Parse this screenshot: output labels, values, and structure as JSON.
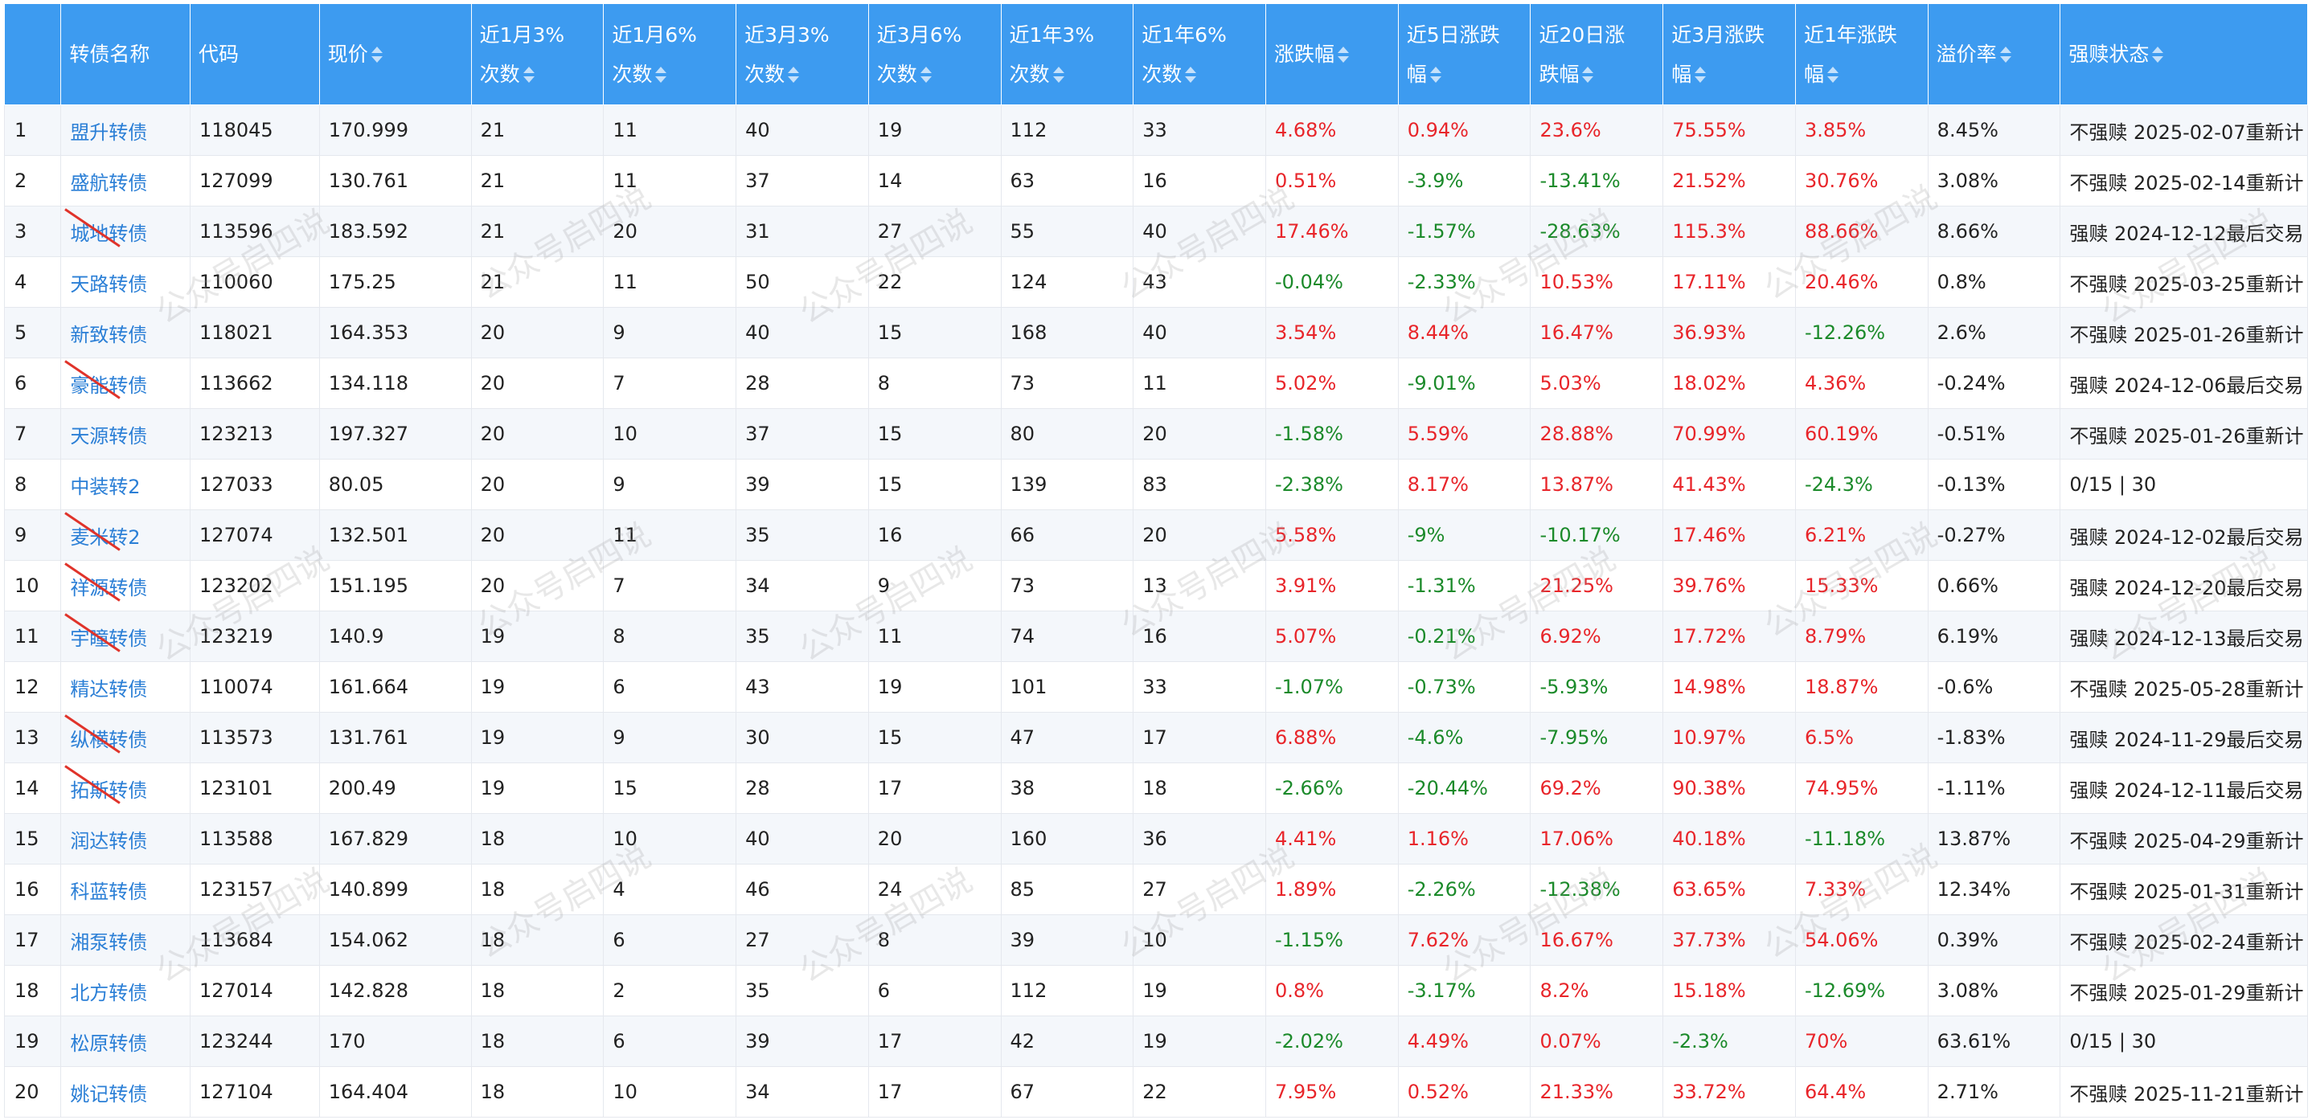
{
  "headers": [
    {
      "key": "idx",
      "lines": [
        ""
      ],
      "sortable": false
    },
    {
      "key": "name",
      "lines": [
        "转债名称"
      ],
      "sortable": false
    },
    {
      "key": "code",
      "lines": [
        "代码"
      ],
      "sortable": false
    },
    {
      "key": "price",
      "lines": [
        "现价"
      ],
      "sortable": true
    },
    {
      "key": "m1_3",
      "lines": [
        "近1月3%",
        "次数"
      ],
      "sortable": true
    },
    {
      "key": "m1_6",
      "lines": [
        "近1月6%",
        "次数"
      ],
      "sortable": true
    },
    {
      "key": "m3_3",
      "lines": [
        "近3月3%",
        "次数"
      ],
      "sortable": true
    },
    {
      "key": "m3_6",
      "lines": [
        "近3月6%",
        "次数"
      ],
      "sortable": true
    },
    {
      "key": "y1_3",
      "lines": [
        "近1年3%",
        "次数"
      ],
      "sortable": true
    },
    {
      "key": "y1_6",
      "lines": [
        "近1年6%",
        "次数"
      ],
      "sortable": true
    },
    {
      "key": "chg",
      "lines": [
        "涨跌幅"
      ],
      "sortable": true
    },
    {
      "key": "chg5",
      "lines": [
        "近5日涨跌",
        "幅"
      ],
      "sortable": true
    },
    {
      "key": "chg20",
      "lines": [
        "近20日涨",
        "跌幅"
      ],
      "sortable": true
    },
    {
      "key": "chg3m",
      "lines": [
        "近3月涨跌",
        "幅"
      ],
      "sortable": true
    },
    {
      "key": "chg1y",
      "lines": [
        "近1年涨跌",
        "幅"
      ],
      "sortable": true
    },
    {
      "key": "premium",
      "lines": [
        "溢价率"
      ],
      "sortable": true
    },
    {
      "key": "redeem",
      "lines": [
        "强赎状态"
      ],
      "sortable": true
    }
  ],
  "rows": [
    [
      "1",
      "盟升转债",
      "118045",
      "170.999",
      "21",
      "11",
      "40",
      "19",
      "112",
      "33",
      "4.68%",
      "0.94%",
      "23.6%",
      "75.55%",
      "3.85%",
      "8.45%",
      "不强赎 2025-02-07重新计"
    ],
    [
      "2",
      "盛航转债",
      "127099",
      "130.761",
      "21",
      "11",
      "37",
      "14",
      "63",
      "16",
      "0.51%",
      "-3.9%",
      "-13.41%",
      "21.52%",
      "30.76%",
      "3.08%",
      "不强赎 2025-02-14重新计"
    ],
    [
      "3",
      "城地转债",
      "113596",
      "183.592",
      "21",
      "20",
      "31",
      "27",
      "55",
      "40",
      "17.46%",
      "-1.57%",
      "-28.63%",
      "115.3%",
      "88.66%",
      "8.66%",
      "强赎 2024-12-12最后交易"
    ],
    [
      "4",
      "天路转债",
      "110060",
      "175.25",
      "21",
      "11",
      "50",
      "22",
      "124",
      "43",
      "-0.04%",
      "-2.33%",
      "10.53%",
      "17.11%",
      "20.46%",
      "0.8%",
      "不强赎 2025-03-25重新计"
    ],
    [
      "5",
      "新致转债",
      "118021",
      "164.353",
      "20",
      "9",
      "40",
      "15",
      "168",
      "40",
      "3.54%",
      "8.44%",
      "16.47%",
      "36.93%",
      "-12.26%",
      "2.6%",
      "不强赎 2025-01-26重新计"
    ],
    [
      "6",
      "豪能转债",
      "113662",
      "134.118",
      "20",
      "7",
      "28",
      "8",
      "73",
      "11",
      "5.02%",
      "-9.01%",
      "5.03%",
      "18.02%",
      "4.36%",
      "-0.24%",
      "强赎 2024-12-06最后交易"
    ],
    [
      "7",
      "天源转债",
      "123213",
      "197.327",
      "20",
      "10",
      "37",
      "15",
      "80",
      "20",
      "-1.58%",
      "5.59%",
      "28.88%",
      "70.99%",
      "60.19%",
      "-0.51%",
      "不强赎 2025-01-26重新计"
    ],
    [
      "8",
      "中装转2",
      "127033",
      "80.05",
      "20",
      "9",
      "39",
      "15",
      "139",
      "83",
      "-2.38%",
      "8.17%",
      "13.87%",
      "41.43%",
      "-24.3%",
      "-0.13%",
      "0/15 | 30"
    ],
    [
      "9",
      "麦米转2",
      "127074",
      "132.501",
      "20",
      "11",
      "35",
      "16",
      "66",
      "20",
      "5.58%",
      "-9%",
      "-10.17%",
      "17.46%",
      "6.21%",
      "-0.27%",
      "强赎 2024-12-02最后交易"
    ],
    [
      "10",
      "祥源转债",
      "123202",
      "151.195",
      "20",
      "7",
      "34",
      "9",
      "73",
      "13",
      "3.91%",
      "-1.31%",
      "21.25%",
      "39.76%",
      "15.33%",
      "0.66%",
      "强赎 2024-12-20最后交易"
    ],
    [
      "11",
      "宇瞳转债",
      "123219",
      "140.9",
      "19",
      "8",
      "35",
      "11",
      "74",
      "16",
      "5.07%",
      "-0.21%",
      "6.92%",
      "17.72%",
      "8.79%",
      "6.19%",
      "强赎 2024-12-13最后交易"
    ],
    [
      "12",
      "精达转债",
      "110074",
      "161.664",
      "19",
      "6",
      "43",
      "19",
      "101",
      "33",
      "-1.07%",
      "-0.73%",
      "-5.93%",
      "14.98%",
      "18.87%",
      "-0.6%",
      "不强赎 2025-05-28重新计"
    ],
    [
      "13",
      "纵横转债",
      "113573",
      "131.761",
      "19",
      "9",
      "30",
      "15",
      "47",
      "17",
      "6.88%",
      "-4.6%",
      "-7.95%",
      "10.97%",
      "6.5%",
      "-1.83%",
      "强赎 2024-11-29最后交易"
    ],
    [
      "14",
      "拓斯转债",
      "123101",
      "200.49",
      "19",
      "15",
      "28",
      "17",
      "38",
      "18",
      "-2.66%",
      "-20.44%",
      "69.2%",
      "90.38%",
      "74.95%",
      "-1.11%",
      "强赎 2024-12-11最后交易"
    ],
    [
      "15",
      "润达转债",
      "113588",
      "167.829",
      "18",
      "10",
      "40",
      "20",
      "160",
      "36",
      "4.41%",
      "1.16%",
      "17.06%",
      "40.18%",
      "-11.18%",
      "13.87%",
      "不强赎 2025-04-29重新计"
    ],
    [
      "16",
      "科蓝转债",
      "123157",
      "140.899",
      "18",
      "4",
      "46",
      "24",
      "85",
      "27",
      "1.89%",
      "-2.26%",
      "-12.38%",
      "63.65%",
      "7.33%",
      "12.34%",
      "不强赎 2025-01-31重新计"
    ],
    [
      "17",
      "湘泵转债",
      "113684",
      "154.062",
      "18",
      "6",
      "27",
      "8",
      "39",
      "10",
      "-1.15%",
      "7.62%",
      "16.67%",
      "37.73%",
      "54.06%",
      "0.39%",
      "不强赎 2025-02-24重新计"
    ],
    [
      "18",
      "北方转债",
      "127014",
      "142.828",
      "18",
      "2",
      "35",
      "6",
      "112",
      "19",
      "0.8%",
      "-3.17%",
      "8.2%",
      "15.18%",
      "-12.69%",
      "3.08%",
      "不强赎 2025-01-29重新计"
    ],
    [
      "19",
      "松原转债",
      "123244",
      "170",
      "18",
      "6",
      "39",
      "17",
      "42",
      "19",
      "-2.02%",
      "4.49%",
      "0.07%",
      "-2.3%",
      "70%",
      "63.61%",
      "0/15 | 30"
    ],
    [
      "20",
      "姚记转债",
      "127104",
      "164.404",
      "18",
      "10",
      "34",
      "17",
      "67",
      "22",
      "7.95%",
      "0.52%",
      "21.33%",
      "33.72%",
      "64.4%",
      "2.71%",
      "不强赎 2025-11-21重新计"
    ]
  ],
  "colored_columns": [
    10,
    11,
    12,
    13,
    14
  ],
  "struck_rows": [
    3,
    6,
    9,
    10,
    11,
    13,
    14
  ],
  "colors": {
    "header_bg": "#3d9bf0",
    "link": "#2b7fd6",
    "up": "#e8252a",
    "down": "#1b8a2a",
    "strike": "#e0332a"
  },
  "watermark": "公众号启四说"
}
